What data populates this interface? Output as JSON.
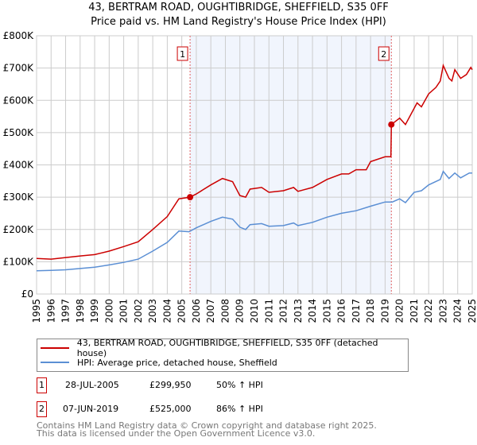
{
  "chart_data": {
    "type": "line",
    "title": "43, BERTRAM ROAD, OUGHTIBRIDGE, SHEFFIELD, S35 0FF",
    "subtitle": "Price paid vs. HM Land Registry's House Price Index (HPI)",
    "xlabel": "",
    "ylabel": "",
    "xlim": [
      1995,
      2025
    ],
    "ylim": [
      0,
      800000
    ],
    "x_ticks": [
      "1995",
      "1996",
      "1997",
      "1998",
      "1999",
      "2000",
      "2001",
      "2002",
      "2003",
      "2004",
      "2005",
      "2006",
      "2007",
      "2008",
      "2009",
      "2010",
      "2011",
      "2012",
      "2013",
      "2014",
      "2015",
      "2016",
      "2017",
      "2018",
      "2019",
      "2020",
      "2021",
      "2022",
      "2023",
      "2024",
      "2025"
    ],
    "y_ticks": [
      {
        "v": 0,
        "label": "£0"
      },
      {
        "v": 100000,
        "label": "£100K"
      },
      {
        "v": 200000,
        "label": "£200K"
      },
      {
        "v": 300000,
        "label": "£300K"
      },
      {
        "v": 400000,
        "label": "£400K"
      },
      {
        "v": 500000,
        "label": "£500K"
      },
      {
        "v": 600000,
        "label": "£600K"
      },
      {
        "v": 700000,
        "label": "£700K"
      },
      {
        "v": 800000,
        "label": "£800K"
      }
    ],
    "grid": true,
    "shaded_range": [
      2005.57,
      2019.43
    ],
    "series": [
      {
        "name": "43, BERTRAM ROAD, OUGHTIBRIDGE, SHEFFIELD, S35 0FF (detached house)",
        "color": "#cc0000",
        "x": [
          1995,
          1996,
          1997,
          1998,
          1999,
          2000,
          2001,
          2002,
          2003,
          2004,
          2004.8,
          2005.57,
          2006,
          2007,
          2007.8,
          2008.5,
          2009,
          2009.4,
          2009.7,
          2010.5,
          2011,
          2012,
          2012.7,
          2013,
          2014,
          2015,
          2016,
          2016.5,
          2017,
          2017.7,
          2018,
          2019,
          2019.4,
          2019.43,
          2020,
          2020.4,
          2021,
          2021.2,
          2021.5,
          2022,
          2022.5,
          2022.8,
          2023,
          2023.4,
          2023.6,
          2023.8,
          2024.2,
          2024.6,
          2024.9,
          2025
        ],
        "values": [
          110000,
          108000,
          113000,
          118000,
          122000,
          133000,
          147000,
          162000,
          200000,
          240000,
          295000,
          299950,
          310000,
          338000,
          358000,
          348000,
          305000,
          300000,
          325000,
          330000,
          315000,
          320000,
          330000,
          318000,
          330000,
          355000,
          372000,
          372000,
          385000,
          385000,
          410000,
          425000,
          425000,
          525000,
          545000,
          525000,
          575000,
          592000,
          580000,
          620000,
          640000,
          660000,
          708000,
          668000,
          660000,
          695000,
          668000,
          680000,
          702000,
          695000
        ]
      },
      {
        "name": "HPI: Average price, detached house, Sheffield",
        "color": "#5b8fd4",
        "x": [
          1995,
          1996,
          1997,
          1998,
          1999,
          2000,
          2001,
          2002,
          2003,
          2004,
          2004.8,
          2005.5,
          2006,
          2007,
          2007.8,
          2008.5,
          2009,
          2009.4,
          2009.7,
          2010.5,
          2011,
          2012,
          2012.7,
          2013,
          2014,
          2015,
          2016,
          2017,
          2018,
          2019,
          2019.5,
          2020,
          2020.4,
          2021,
          2021.5,
          2022,
          2022.8,
          2023,
          2023.4,
          2023.8,
          2024.2,
          2024.8,
          2025
        ],
        "values": [
          72000,
          73000,
          75000,
          79000,
          83000,
          90000,
          98000,
          108000,
          133000,
          160000,
          195000,
          193000,
          205000,
          225000,
          238000,
          232000,
          207000,
          200000,
          215000,
          218000,
          210000,
          212000,
          220000,
          212000,
          222000,
          238000,
          250000,
          258000,
          272000,
          285000,
          285000,
          295000,
          283000,
          315000,
          320000,
          338000,
          355000,
          380000,
          358000,
          375000,
          360000,
          375000,
          375000
        ]
      }
    ],
    "annotations": [
      {
        "label": "1",
        "x": 2005.57,
        "value": 299950
      },
      {
        "label": "2",
        "x": 2019.43,
        "value": 525000
      }
    ]
  },
  "transactions": [
    {
      "num": "1",
      "date": "28-JUL-2005",
      "price": "£299,950",
      "hpi": "50% ↑ HPI"
    },
    {
      "num": "2",
      "date": "07-JUN-2019",
      "price": "£525,000",
      "hpi": "86% ↑ HPI"
    }
  ],
  "footer": [
    "Contains HM Land Registry data © Crown copyright and database right 2025.",
    "This data is licensed under the Open Government Licence v3.0."
  ]
}
